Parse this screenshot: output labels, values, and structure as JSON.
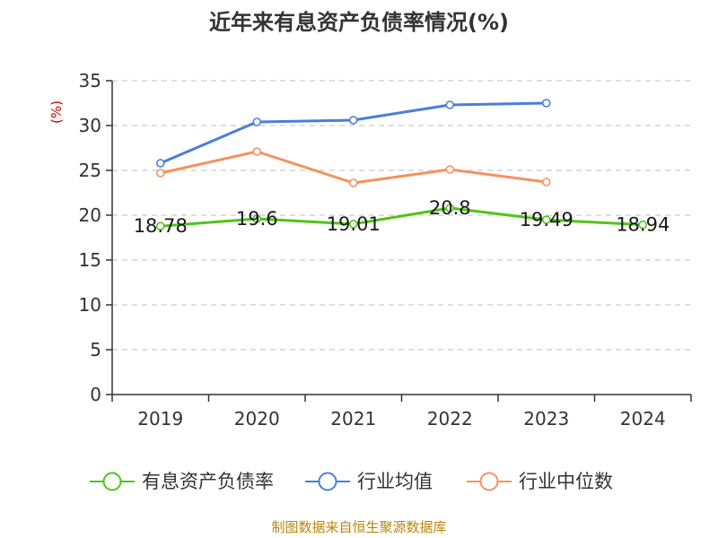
{
  "chart_data": {
    "type": "line",
    "title": "近年来有息资产负债率情况(%)",
    "ylabel": "(%)",
    "xlabel": "",
    "categories": [
      "2019",
      "2020",
      "2021",
      "2022",
      "2023",
      "2024"
    ],
    "ylim": [
      0,
      35
    ],
    "yticks": [
      0,
      5,
      10,
      15,
      20,
      25,
      30,
      35
    ],
    "grid": "horizontal-dashed",
    "legend_position": "bottom",
    "series": [
      {
        "name": "有息资产负债率",
        "color": "#52c41a",
        "values": [
          18.78,
          19.6,
          19.01,
          20.8,
          19.49,
          18.94
        ],
        "labels": [
          "18.78",
          "19.6",
          "19.01",
          "20.8",
          "19.49",
          "18.94"
        ]
      },
      {
        "name": "行业均值",
        "color": "#4a7fd8",
        "values": [
          25.8,
          30.4,
          30.6,
          32.3,
          32.5,
          null
        ]
      },
      {
        "name": "行业中位数",
        "color": "#f5925e",
        "values": [
          24.7,
          27.1,
          23.6,
          25.1,
          23.7,
          null
        ]
      }
    ]
  },
  "source": "制图数据来自恒生聚源数据库",
  "colors": {
    "axis": "#333333",
    "grid": "#cccccc",
    "ylabel": "#cc0000",
    "source": "#b8860b"
  }
}
